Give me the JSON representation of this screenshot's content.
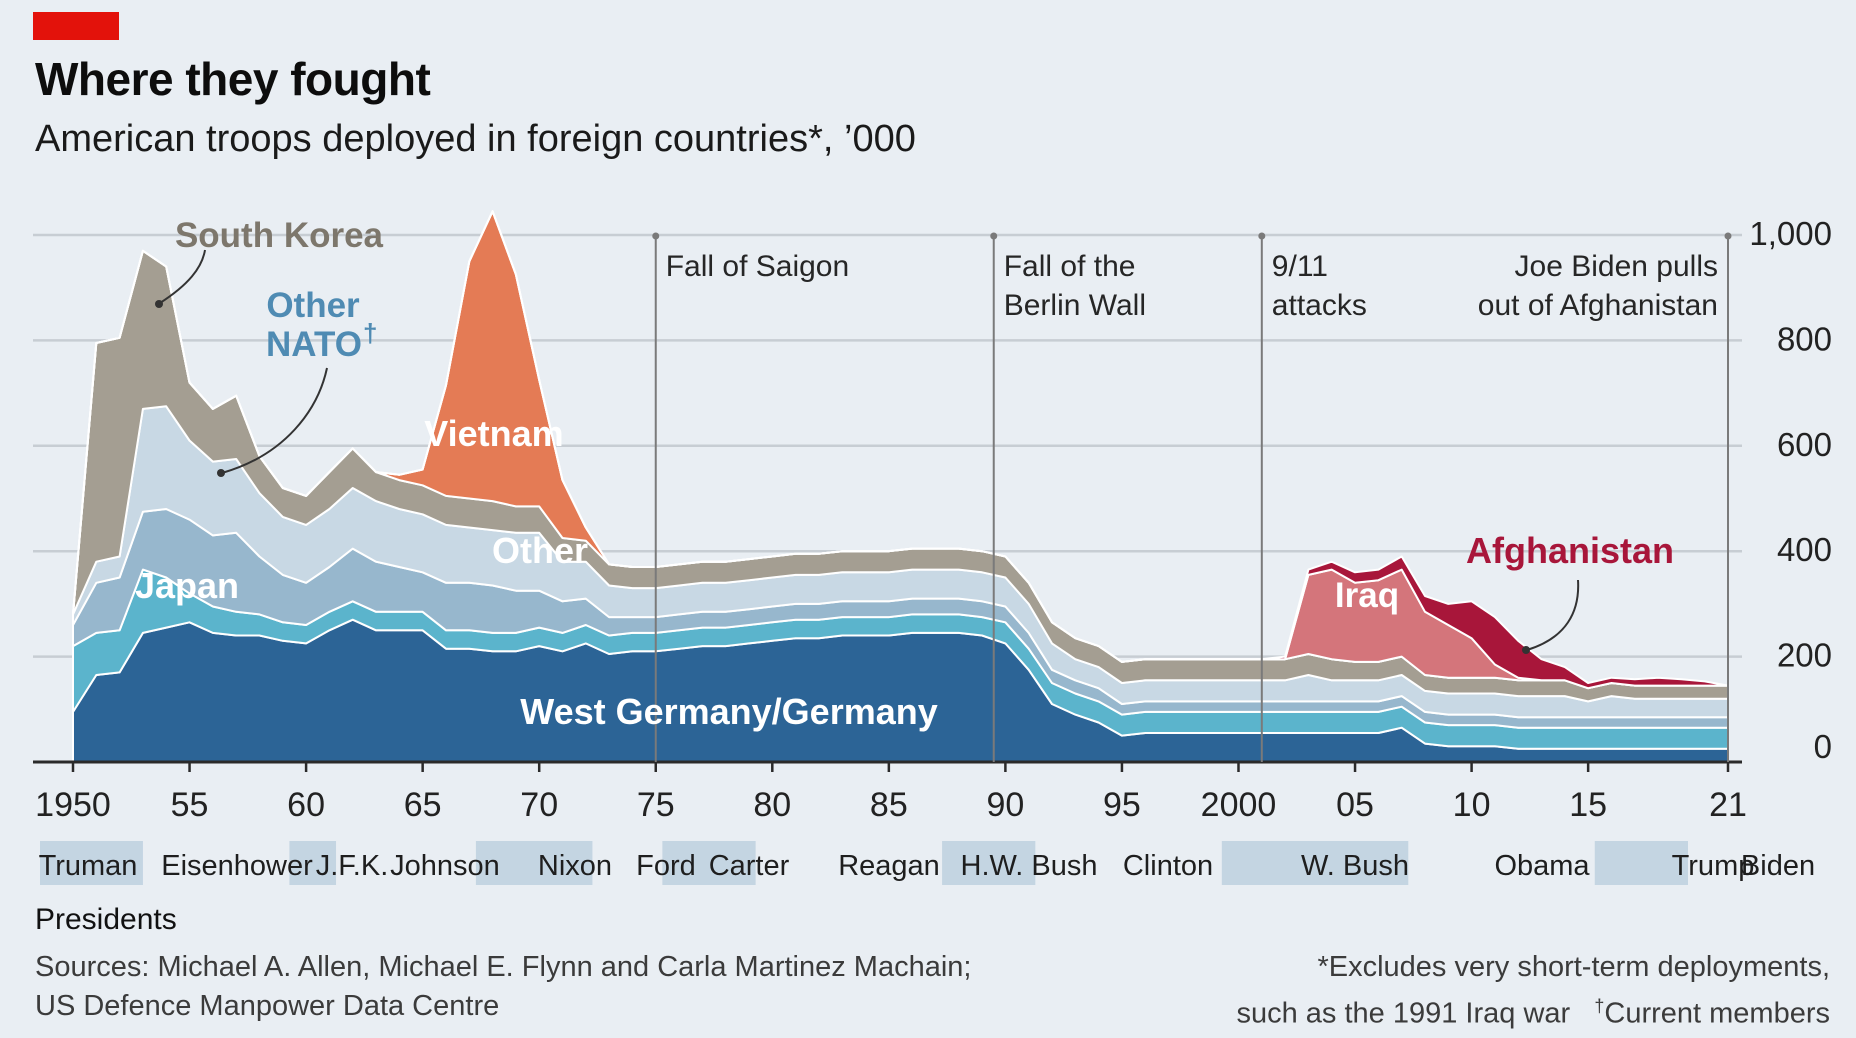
{
  "header": {
    "title": "Where they fought",
    "subtitle": "American troops deployed in foreign countries*, ’000"
  },
  "colors": {
    "brand_tag": "#e3120b",
    "background": "#e9eef3",
    "grid": "#c7cdd3",
    "germany": "#2c6496",
    "japan": "#5bb4cc",
    "other_nato": "#97b7cd",
    "other": "#c8d8e4",
    "south_korea": "#a49e92",
    "vietnam": "#e47b55",
    "iraq": "#d4757b",
    "afghanistan": "#a8163a",
    "annotation_line": "#7a7a7a",
    "president_band": "#c4d5e2"
  },
  "chart_data": {
    "type": "area",
    "stacked": true,
    "x": [
      1950,
      1951,
      1952,
      1953,
      1954,
      1955,
      1956,
      1957,
      1958,
      1959,
      1960,
      1961,
      1962,
      1963,
      1964,
      1965,
      1966,
      1967,
      1968,
      1969,
      1970,
      1971,
      1972,
      1973,
      1974,
      1975,
      1976,
      1977,
      1978,
      1979,
      1980,
      1981,
      1982,
      1983,
      1984,
      1985,
      1986,
      1987,
      1988,
      1989,
      1990,
      1991,
      1992,
      1993,
      1994,
      1995,
      1996,
      1997,
      1998,
      1999,
      2000,
      2001,
      2002,
      2003,
      2004,
      2005,
      2006,
      2007,
      2008,
      2009,
      2010,
      2011,
      2012,
      2013,
      2014,
      2015,
      2016,
      2017,
      2018,
      2019,
      2020,
      2021
    ],
    "xlim": [
      1950,
      2021
    ],
    "ylim": [
      0,
      1000
    ],
    "y_ticks": [
      0,
      200,
      400,
      600,
      800,
      1000
    ],
    "y_tick_labels": [
      "0",
      "200",
      "400",
      "600",
      "800",
      "1,000"
    ],
    "x_ticks": [
      1950,
      1955,
      1960,
      1965,
      1970,
      1975,
      1980,
      1985,
      1990,
      1995,
      2000,
      2005,
      2010,
      2015,
      2021
    ],
    "x_tick_labels": [
      "1950",
      "55",
      "60",
      "65",
      "70",
      "75",
      "80",
      "85",
      "90",
      "95",
      "2000",
      "05",
      "10",
      "15",
      "21"
    ],
    "grid": true,
    "series": [
      {
        "name": "West Germany/Germany",
        "values": [
          95,
          165,
          170,
          245,
          255,
          265,
          245,
          240,
          240,
          230,
          225,
          250,
          270,
          250,
          250,
          250,
          215,
          215,
          210,
          210,
          220,
          210,
          225,
          205,
          210,
          210,
          215,
          220,
          220,
          225,
          230,
          235,
          235,
          240,
          240,
          240,
          245,
          245,
          245,
          240,
          225,
          175,
          110,
          90,
          75,
          50,
          55,
          55,
          55,
          55,
          55,
          55,
          55,
          55,
          55,
          55,
          55,
          65,
          35,
          30,
          30,
          30,
          25,
          25,
          25,
          25,
          25,
          25,
          25,
          25,
          25,
          25
        ]
      },
      {
        "name": "Japan",
        "values": [
          125,
          80,
          80,
          120,
          95,
          55,
          50,
          45,
          40,
          35,
          35,
          35,
          35,
          35,
          35,
          35,
          35,
          35,
          35,
          35,
          35,
          35,
          35,
          35,
          35,
          35,
          35,
          35,
          35,
          35,
          35,
          35,
          35,
          35,
          35,
          35,
          35,
          35,
          35,
          35,
          40,
          40,
          40,
          40,
          40,
          40,
          40,
          40,
          40,
          40,
          40,
          40,
          40,
          40,
          40,
          40,
          40,
          40,
          40,
          40,
          40,
          40,
          40,
          40,
          40,
          40,
          40,
          40,
          40,
          40,
          40,
          40
        ]
      },
      {
        "name": "Other NATO",
        "values": [
          40,
          95,
          100,
          110,
          130,
          140,
          135,
          150,
          110,
          90,
          80,
          85,
          100,
          95,
          85,
          75,
          90,
          90,
          90,
          80,
          70,
          60,
          50,
          35,
          30,
          30,
          30,
          30,
          30,
          30,
          30,
          30,
          30,
          30,
          30,
          30,
          30,
          30,
          30,
          30,
          30,
          30,
          25,
          25,
          25,
          20,
          20,
          20,
          20,
          20,
          20,
          20,
          20,
          20,
          20,
          20,
          20,
          20,
          20,
          20,
          20,
          20,
          20,
          20,
          20,
          20,
          20,
          20,
          20,
          20,
          20,
          20
        ]
      },
      {
        "name": "Other",
        "values": [
          20,
          40,
          40,
          195,
          195,
          150,
          140,
          140,
          120,
          110,
          110,
          110,
          115,
          115,
          110,
          110,
          110,
          105,
          105,
          110,
          110,
          75,
          70,
          60,
          55,
          55,
          55,
          55,
          55,
          55,
          55,
          55,
          55,
          55,
          55,
          55,
          55,
          55,
          55,
          55,
          55,
          55,
          50,
          40,
          40,
          40,
          40,
          40,
          40,
          40,
          40,
          40,
          40,
          50,
          40,
          40,
          40,
          40,
          40,
          40,
          40,
          40,
          40,
          40,
          40,
          30,
          40,
          35,
          35,
          35,
          35,
          35
        ]
      },
      {
        "name": "South Korea",
        "values": [
          0,
          415,
          415,
          300,
          265,
          110,
          100,
          120,
          70,
          55,
          55,
          70,
          75,
          55,
          55,
          55,
          55,
          55,
          55,
          50,
          50,
          45,
          40,
          40,
          40,
          40,
          40,
          40,
          40,
          40,
          40,
          40,
          40,
          40,
          40,
          40,
          40,
          40,
          40,
          40,
          40,
          40,
          40,
          40,
          40,
          40,
          40,
          40,
          40,
          40,
          40,
          40,
          40,
          40,
          40,
          35,
          35,
          35,
          30,
          30,
          30,
          30,
          30,
          30,
          30,
          25,
          25,
          25,
          25,
          25,
          25,
          25
        ]
      },
      {
        "name": "Vietnam",
        "values": [
          0,
          0,
          0,
          0,
          0,
          0,
          0,
          0,
          0,
          0,
          0,
          0,
          0,
          0,
          10,
          30,
          210,
          450,
          550,
          440,
          240,
          110,
          25,
          0,
          0,
          0,
          0,
          0,
          0,
          0,
          0,
          0,
          0,
          0,
          0,
          0,
          0,
          0,
          0,
          0,
          0,
          0,
          0,
          0,
          0,
          0,
          0,
          0,
          0,
          0,
          0,
          0,
          0,
          0,
          0,
          0,
          0,
          0,
          0,
          0,
          0,
          0,
          0,
          0,
          0,
          0,
          0,
          0,
          0,
          0,
          0,
          0
        ]
      },
      {
        "name": "Iraq",
        "values": [
          0,
          0,
          0,
          0,
          0,
          0,
          0,
          0,
          0,
          0,
          0,
          0,
          0,
          0,
          0,
          0,
          0,
          0,
          0,
          0,
          0,
          0,
          0,
          0,
          0,
          0,
          0,
          0,
          0,
          0,
          0,
          0,
          0,
          0,
          0,
          0,
          0,
          0,
          0,
          0,
          0,
          0,
          0,
          0,
          0,
          0,
          0,
          0,
          0,
          0,
          0,
          0,
          0,
          150,
          170,
          150,
          155,
          165,
          120,
          100,
          75,
          25,
          5,
          0,
          0,
          0,
          0,
          0,
          0,
          0,
          0,
          0
        ]
      },
      {
        "name": "Afghanistan",
        "values": [
          0,
          0,
          0,
          0,
          0,
          0,
          0,
          0,
          0,
          0,
          0,
          0,
          0,
          0,
          0,
          0,
          0,
          0,
          0,
          0,
          0,
          0,
          0,
          0,
          0,
          0,
          0,
          0,
          0,
          0,
          0,
          0,
          0,
          0,
          0,
          0,
          0,
          0,
          0,
          0,
          0,
          0,
          0,
          0,
          0,
          0,
          0,
          0,
          0,
          0,
          0,
          0,
          5,
          10,
          15,
          20,
          20,
          25,
          30,
          40,
          70,
          90,
          70,
          40,
          25,
          10,
          10,
          12,
          15,
          12,
          8,
          0
        ]
      }
    ],
    "series_labels": {
      "south_korea": "South Korea",
      "other_nato": "Other NATO",
      "vietnam": "Vietnam",
      "other": "Other",
      "japan": "Japan",
      "germany": "West Germany/Germany",
      "iraq": "Iraq",
      "afghanistan": "Afghanistan"
    },
    "annotations": [
      {
        "year": 1975,
        "lines": [
          "Fall of Saigon"
        ]
      },
      {
        "year": 1989.5,
        "lines": [
          "Fall of the",
          "Berlin Wall"
        ]
      },
      {
        "year": 2001,
        "lines": [
          "9/11",
          "attacks"
        ]
      },
      {
        "year": 2021,
        "lines": [
          "Joe Biden pulls",
          "out of Afghanistan"
        ]
      }
    ],
    "presidents": [
      {
        "name": "Truman",
        "start": 1950,
        "end": 1953,
        "shaded": true
      },
      {
        "name": "Eisenhower",
        "start": 1953,
        "end": 1961,
        "shaded": false
      },
      {
        "name": "J.F.K.",
        "start": 1961,
        "end": 1963,
        "shaded": true
      },
      {
        "name": "Johnson",
        "start": 1963,
        "end": 1969,
        "shaded": false
      },
      {
        "name": "Nixon",
        "start": 1969,
        "end": 1974,
        "shaded": true
      },
      {
        "name": "Ford",
        "start": 1974,
        "end": 1977,
        "shaded": false
      },
      {
        "name": "Carter",
        "start": 1977,
        "end": 1981,
        "shaded": true
      },
      {
        "name": "Reagan",
        "start": 1981,
        "end": 1989,
        "shaded": false
      },
      {
        "name": "H.W. Bush",
        "start": 1989,
        "end": 1993,
        "shaded": true
      },
      {
        "name": "Clinton",
        "start": 1993,
        "end": 2001,
        "shaded": false
      },
      {
        "name": "W. Bush",
        "start": 2001,
        "end": 2009,
        "shaded": true
      },
      {
        "name": "Obama",
        "start": 2009,
        "end": 2017,
        "shaded": false
      },
      {
        "name": "Trump",
        "start": 2017,
        "end": 2021,
        "shaded": true
      },
      {
        "name": "Biden",
        "start": 2021,
        "end": 2022,
        "shaded": false
      }
    ]
  },
  "footer": {
    "presidents_heading": "Presidents",
    "sources_line1": "Sources: Michael A. Allen, Michael E. Flynn and Carla Martinez Machain;",
    "sources_line2": "US Defence Manpower Data Centre",
    "note_line1": "*Excludes very short-term deployments,",
    "note_line2": "such as the 1991 Iraq war",
    "dagger": "†",
    "note_current": "Current members"
  }
}
